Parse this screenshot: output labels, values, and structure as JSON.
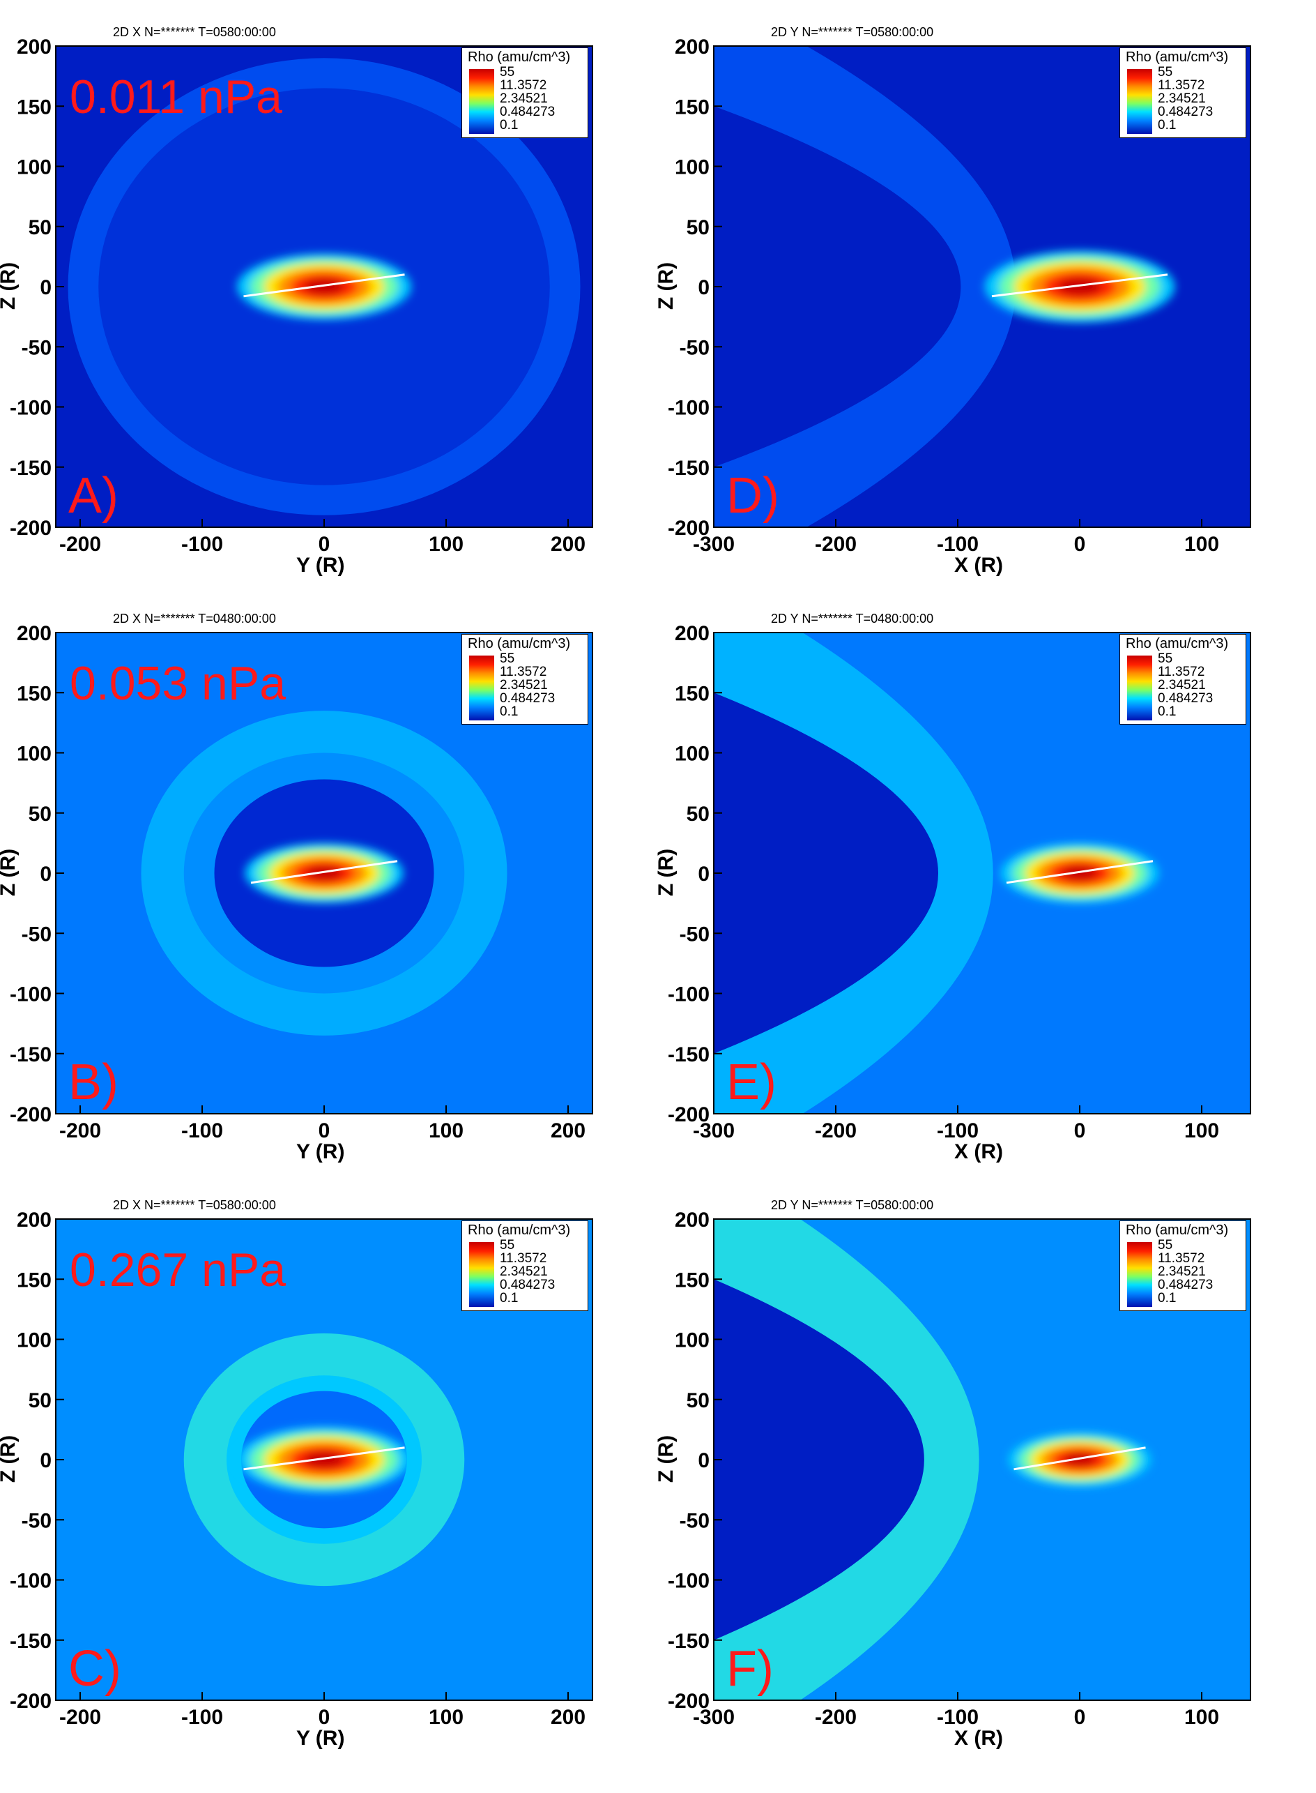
{
  "legend": {
    "title": "Rho (amu/cm^3)",
    "levels": [
      "55",
      "11.3572",
      "2.34521",
      "0.484273",
      "0.1"
    ]
  },
  "colors": {
    "annotation": "#ff1a1a",
    "background_low": "#0010a8",
    "density_high": "#c80000"
  },
  "chart_data": [
    {
      "type": "heatmap",
      "panel": "A)",
      "header": "2D X N=******* T=0580:00:00",
      "annotation": "0.011 nPa",
      "xlabel": "Y (R)",
      "ylabel": "Z (R)",
      "xlim": [
        -220,
        220
      ],
      "ylim": [
        -200,
        200
      ],
      "xticks": [
        "-200",
        "-100",
        "0",
        "100",
        "200"
      ],
      "yticks": [
        "200",
        "150",
        "100",
        "50",
        "0",
        "-50",
        "-100",
        "-150",
        "-200"
      ],
      "view": "x-cut",
      "background_density": 0.15,
      "shells": [
        {
          "rx": 210,
          "ry": 190,
          "density": 0.3
        },
        {
          "rx": 185,
          "ry": 165,
          "density": 0.22
        }
      ],
      "core": {
        "x": 0,
        "y": 0,
        "extent": 55,
        "peak": 55
      }
    },
    {
      "type": "heatmap",
      "panel": "B)",
      "header": "2D X N=******* T=0480:00:00",
      "annotation": "0.053 nPa",
      "xlabel": "Y (R)",
      "ylabel": "Z (R)",
      "xlim": [
        -220,
        220
      ],
      "ylim": [
        -200,
        200
      ],
      "xticks": [
        "-200",
        "-100",
        "0",
        "100",
        "200"
      ],
      "yticks": [
        "200",
        "150",
        "100",
        "50",
        "0",
        "-50",
        "-100",
        "-150",
        "-200"
      ],
      "view": "x-cut",
      "background_density": 0.45,
      "shells": [
        {
          "rx": 150,
          "ry": 135,
          "density": 0.75
        },
        {
          "rx": 115,
          "ry": 100,
          "density": 0.55
        },
        {
          "rx": 90,
          "ry": 78,
          "density": 0.2
        }
      ],
      "core": {
        "x": 0,
        "y": 0,
        "extent": 50,
        "peak": 55
      }
    },
    {
      "type": "heatmap",
      "panel": "C)",
      "header": "2D X N=******* T=0580:00:00",
      "annotation": "0.267 nPa",
      "xlabel": "Y (R)",
      "ylabel": "Z (R)",
      "xlim": [
        -220,
        220
      ],
      "ylim": [
        -200,
        200
      ],
      "xticks": [
        "-200",
        "-100",
        "0",
        "100",
        "200"
      ],
      "yticks": [
        "200",
        "150",
        "100",
        "50",
        "0",
        "-50",
        "-100",
        "-150",
        "-200"
      ],
      "view": "x-cut",
      "background_density": 0.55,
      "shells": [
        {
          "rx": 115,
          "ry": 105,
          "density": 1.3
        },
        {
          "rx": 80,
          "ry": 70,
          "density": 1.0
        },
        {
          "rx": 68,
          "ry": 57,
          "density": 0.4
        }
      ],
      "core": {
        "x": 0,
        "y": 0,
        "extent": 55,
        "peak": 55
      }
    },
    {
      "type": "heatmap",
      "panel": "D)",
      "header": "2D Y N=******* T=0580:00:00",
      "annotation": "",
      "xlabel": "X (R)",
      "ylabel": "Z (R)",
      "xlim": [
        -300,
        140
      ],
      "ylim": [
        -200,
        200
      ],
      "xticks": [
        "-300",
        "-200",
        "-100",
        "0",
        "100"
      ],
      "yticks": [
        "200",
        "150",
        "100",
        "50",
        "0",
        "-50",
        "-100",
        "-150",
        "-200"
      ],
      "view": "y-cut",
      "background_density": 0.15,
      "bowshock": {
        "nose": 115,
        "density": 0.3
      },
      "core": {
        "x": 0,
        "y": 0,
        "extent": 60,
        "peak": 55
      }
    },
    {
      "type": "heatmap",
      "panel": "E)",
      "header": "2D Y N=******* T=0480:00:00",
      "annotation": "",
      "xlabel": "X (R)",
      "ylabel": "Z (R)",
      "xlim": [
        -300,
        140
      ],
      "ylim": [
        -200,
        200
      ],
      "xticks": [
        "-300",
        "-200",
        "-100",
        "0",
        "100"
      ],
      "yticks": [
        "200",
        "150",
        "100",
        "50",
        "0",
        "-50",
        "-100",
        "-150",
        "-200"
      ],
      "view": "y-cut",
      "background_density": 0.45,
      "bowshock": {
        "nose": 78,
        "density": 0.8
      },
      "core": {
        "x": 0,
        "y": 0,
        "extent": 50,
        "peak": 55
      }
    },
    {
      "type": "heatmap",
      "panel": "F)",
      "header": "2D Y N=******* T=0580:00:00",
      "annotation": "",
      "xlabel": "X (R)",
      "ylabel": "Z (R)",
      "xlim": [
        -300,
        140
      ],
      "ylim": [
        -200,
        200
      ],
      "xticks": [
        "-300",
        "-200",
        "-100",
        "0",
        "100"
      ],
      "yticks": [
        "200",
        "150",
        "100",
        "50",
        "0",
        "-50",
        "-100",
        "-150",
        "-200"
      ],
      "view": "y-cut",
      "background_density": 0.55,
      "bowshock": {
        "nose": 55,
        "density": 1.3
      },
      "core": {
        "x": 0,
        "y": 0,
        "extent": 45,
        "peak": 55
      }
    }
  ]
}
